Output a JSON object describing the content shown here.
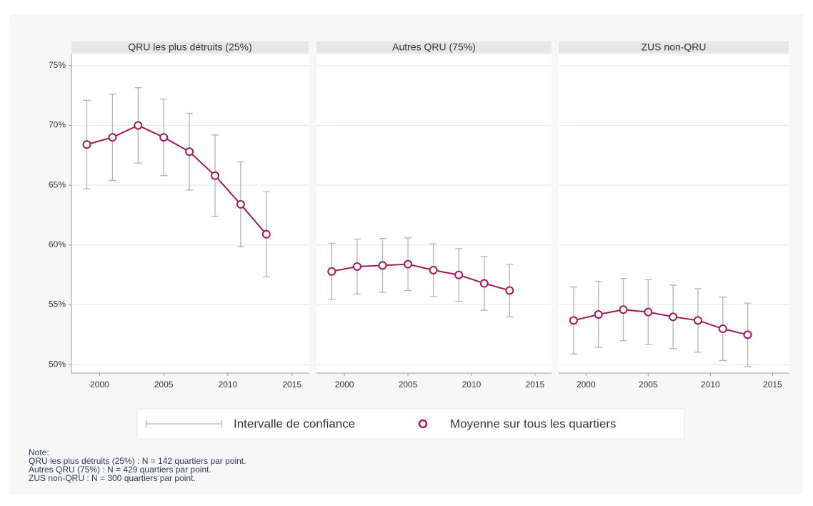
{
  "chart_data": [
    {
      "type": "line",
      "title": "QRU les plus détruits (25%)",
      "x": [
        1999,
        2001,
        2003,
        2005,
        2007,
        2009,
        2011,
        2013
      ],
      "values": [
        68.4,
        69.0,
        70.0,
        69.0,
        67.8,
        65.8,
        63.4,
        60.9
      ],
      "errors": [
        3.7,
        3.6,
        3.15,
        3.2,
        3.2,
        3.4,
        3.55,
        3.55
      ],
      "color": "#a3195b",
      "error_color": "#b4b4b4",
      "xlim": [
        1997.8,
        2016.3
      ],
      "xticks": [
        2000,
        2005,
        2010,
        2015
      ],
      "ylim": [
        49.3,
        76
      ],
      "yticks": [
        {
          "value": 50,
          "label": "50%"
        },
        {
          "value": 55,
          "label": "55%"
        },
        {
          "value": 60,
          "label": "60%"
        },
        {
          "value": 65,
          "label": "65%"
        },
        {
          "value": 70,
          "label": "70%"
        },
        {
          "value": 75,
          "label": "75%"
        }
      ],
      "grid": true
    },
    {
      "type": "line",
      "title": "Autres QRU (75%)",
      "x": [
        1999,
        2001,
        2003,
        2005,
        2007,
        2009,
        2011,
        2013
      ],
      "values": [
        57.8,
        58.2,
        58.3,
        58.4,
        57.9,
        57.5,
        56.8,
        56.2
      ],
      "errors": [
        2.35,
        2.3,
        2.25,
        2.2,
        2.2,
        2.2,
        2.25,
        2.2
      ],
      "color": "#a3195b",
      "error_color": "#b4b4b4",
      "xlim": [
        1997.8,
        2016.3
      ],
      "xticks": [
        2000,
        2005,
        2010,
        2015
      ],
      "ylim": [
        49.3,
        76
      ],
      "yticks": [
        50,
        55,
        60,
        65,
        70,
        75
      ],
      "grid": true
    },
    {
      "type": "line",
      "title": "ZUS non-QRU",
      "x": [
        1999,
        2001,
        2003,
        2005,
        2007,
        2009,
        2011,
        2013
      ],
      "values": [
        53.7,
        54.2,
        54.6,
        54.4,
        54.0,
        53.7,
        53.0,
        52.5
      ],
      "errors": [
        2.8,
        2.75,
        2.6,
        2.7,
        2.65,
        2.65,
        2.65,
        2.65
      ],
      "color": "#a3195b",
      "error_color": "#b4b4b4",
      "xlim": [
        1997.8,
        2016.3
      ],
      "xticks": [
        2000,
        2005,
        2010,
        2015
      ],
      "ylim": [
        49.3,
        76
      ],
      "yticks": [
        50,
        55,
        60,
        65,
        70,
        75
      ],
      "grid": true
    }
  ],
  "legend": [
    "Intervalle de confiance",
    "Moyenne sur tous les quartiers"
  ],
  "note": [
    "Note:",
    "QRU les plus détruits (25%) : N = 142 quartiers par point.",
    "Autres QRU (75%) : N = 429 quartiers par point.",
    "ZUS non-QRU : N = 300 quartiers par point."
  ]
}
